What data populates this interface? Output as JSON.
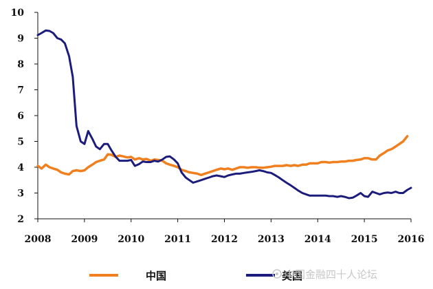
{
  "chart_data": {
    "type": "line",
    "title": "",
    "xlabel": "",
    "ylabel": "",
    "x_ticks": [
      "2008",
      "2009",
      "2010",
      "2011",
      "2012",
      "2013",
      "2014",
      "2015",
      "2016"
    ],
    "y_ticks": [
      "2",
      "3",
      "4",
      "5",
      "6",
      "7",
      "8",
      "9",
      "10"
    ],
    "xlim": [
      2008.0,
      2016.0
    ],
    "ylim": [
      2,
      10
    ],
    "grid": false,
    "legend_position": "bottom",
    "series": [
      {
        "name": "中国",
        "color": "#f07f1e",
        "x": [
          2008.0,
          2008.08,
          2008.17,
          2008.25,
          2008.33,
          2008.42,
          2008.5,
          2008.58,
          2008.67,
          2008.75,
          2008.83,
          2008.92,
          2009.0,
          2009.08,
          2009.17,
          2009.25,
          2009.33,
          2009.42,
          2009.5,
          2009.58,
          2009.67,
          2009.75,
          2009.83,
          2009.92,
          2010.0,
          2010.08,
          2010.17,
          2010.25,
          2010.33,
          2010.42,
          2010.5,
          2010.58,
          2010.67,
          2010.75,
          2010.83,
          2010.92,
          2011.0,
          2011.08,
          2011.17,
          2011.25,
          2011.33,
          2011.42,
          2011.5,
          2011.58,
          2011.67,
          2011.75,
          2011.83,
          2011.92,
          2012.0,
          2012.08,
          2012.17,
          2012.25,
          2012.33,
          2012.42,
          2012.5,
          2012.58,
          2012.67,
          2012.75,
          2012.83,
          2012.92,
          2013.0,
          2013.08,
          2013.17,
          2013.25,
          2013.33,
          2013.42,
          2013.5,
          2013.58,
          2013.67,
          2013.75,
          2013.83,
          2013.92,
          2014.0,
          2014.08,
          2014.17,
          2014.25,
          2014.33,
          2014.42,
          2014.5,
          2014.58,
          2014.67,
          2014.75,
          2014.83,
          2014.92,
          2015.0,
          2015.08,
          2015.17,
          2015.25,
          2015.33,
          2015.42,
          2015.5,
          2015.58,
          2015.67,
          2015.75,
          2015.83,
          2015.92
        ],
        "values": [
          4.05,
          3.95,
          4.1,
          4.0,
          3.95,
          3.9,
          3.8,
          3.75,
          3.72,
          3.85,
          3.88,
          3.85,
          3.88,
          4.0,
          4.1,
          4.2,
          4.25,
          4.3,
          4.5,
          4.48,
          4.4,
          4.45,
          4.42,
          4.38,
          4.4,
          4.3,
          4.35,
          4.3,
          4.32,
          4.25,
          4.3,
          4.28,
          4.25,
          4.15,
          4.1,
          4.05,
          4.0,
          3.9,
          3.85,
          3.8,
          3.78,
          3.75,
          3.7,
          3.75,
          3.8,
          3.85,
          3.9,
          3.95,
          3.92,
          3.95,
          3.9,
          3.95,
          4.0,
          4.0,
          3.98,
          4.0,
          4.0,
          3.98,
          3.98,
          4.0,
          4.02,
          4.05,
          4.05,
          4.05,
          4.08,
          4.05,
          4.08,
          4.05,
          4.1,
          4.1,
          4.15,
          4.15,
          4.15,
          4.2,
          4.2,
          4.18,
          4.2,
          4.2,
          4.22,
          4.22,
          4.25,
          4.25,
          4.28,
          4.3,
          4.35,
          4.35,
          4.3,
          4.3,
          4.45,
          4.55,
          4.65,
          4.7,
          4.8,
          4.9,
          5.0,
          5.2
        ]
      },
      {
        "name": "美国",
        "color": "#1c1c7c",
        "x": [
          2008.0,
          2008.08,
          2008.17,
          2008.25,
          2008.33,
          2008.42,
          2008.5,
          2008.58,
          2008.67,
          2008.75,
          2008.83,
          2008.92,
          2009.0,
          2009.08,
          2009.17,
          2009.25,
          2009.33,
          2009.42,
          2009.5,
          2009.58,
          2009.67,
          2009.75,
          2009.83,
          2009.92,
          2010.0,
          2010.08,
          2010.17,
          2010.25,
          2010.33,
          2010.42,
          2010.5,
          2010.58,
          2010.67,
          2010.75,
          2010.83,
          2010.92,
          2011.0,
          2011.08,
          2011.17,
          2011.25,
          2011.33,
          2011.42,
          2011.5,
          2011.58,
          2011.67,
          2011.75,
          2011.83,
          2011.92,
          2012.0,
          2012.08,
          2012.17,
          2012.25,
          2012.33,
          2012.42,
          2012.5,
          2012.58,
          2012.67,
          2012.75,
          2012.83,
          2012.92,
          2013.0,
          2013.08,
          2013.17,
          2013.25,
          2013.33,
          2013.42,
          2013.5,
          2013.58,
          2013.67,
          2013.75,
          2013.83,
          2013.92,
          2014.0,
          2014.08,
          2014.17,
          2014.25,
          2014.33,
          2014.42,
          2014.5,
          2014.58,
          2014.67,
          2014.75,
          2014.83,
          2014.92,
          2015.0,
          2015.08,
          2015.17,
          2015.25,
          2015.33,
          2015.42,
          2015.5,
          2015.58,
          2015.67,
          2015.75,
          2015.83,
          2015.92,
          2016.0
        ],
        "values": [
          9.12,
          9.2,
          9.3,
          9.28,
          9.2,
          9.0,
          8.95,
          8.8,
          8.3,
          7.5,
          5.6,
          5.0,
          4.9,
          5.4,
          5.1,
          4.8,
          4.7,
          4.9,
          4.9,
          4.65,
          4.4,
          4.25,
          4.25,
          4.25,
          4.28,
          4.05,
          4.12,
          4.22,
          4.2,
          4.2,
          4.25,
          4.22,
          4.3,
          4.4,
          4.42,
          4.3,
          4.15,
          3.8,
          3.6,
          3.5,
          3.4,
          3.45,
          3.5,
          3.55,
          3.6,
          3.65,
          3.68,
          3.65,
          3.62,
          3.68,
          3.72,
          3.75,
          3.75,
          3.78,
          3.8,
          3.82,
          3.85,
          3.88,
          3.85,
          3.8,
          3.78,
          3.7,
          3.6,
          3.5,
          3.4,
          3.3,
          3.2,
          3.1,
          3.0,
          2.95,
          2.9,
          2.9,
          2.9,
          2.9,
          2.9,
          2.88,
          2.88,
          2.85,
          2.88,
          2.85,
          2.8,
          2.82,
          2.9,
          3.0,
          2.88,
          2.85,
          3.05,
          3.0,
          2.95,
          3.0,
          3.02,
          3.0,
          3.05,
          3.0,
          3.0,
          3.12,
          3.2
        ]
      }
    ]
  },
  "watermark": "中国金融四十人论坛",
  "colors": {
    "axis": "#111111",
    "background": "#ffffff"
  }
}
